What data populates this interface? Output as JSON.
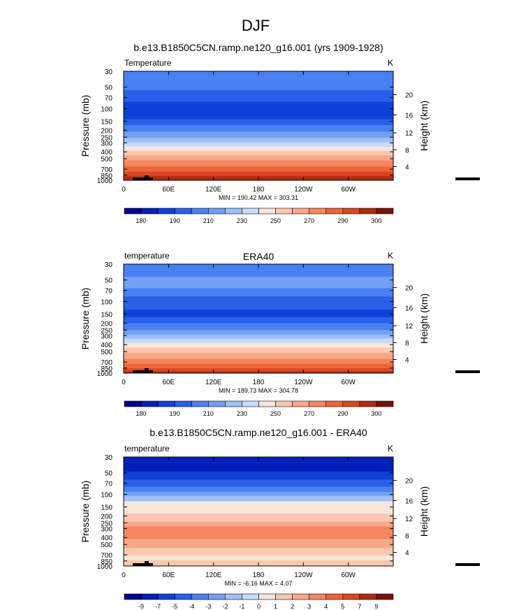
{
  "figure": {
    "title": "DJF"
  },
  "chart_data": [
    {
      "type": "heatmap",
      "title": "b.e13.B1850C5CN.ramp.ne120_g16.001 (yrs 1909-1928)",
      "left_label": "Temperature",
      "right_label": "K",
      "ylabel": "Pressure (mb)",
      "y2label": "Height (km)",
      "x_ticks": [
        "0",
        "60E",
        "120E",
        "180",
        "120W",
        "60W"
      ],
      "y_ticks": [
        "30",
        "50",
        "70",
        "100",
        "150",
        "200",
        "250",
        "300",
        "400",
        "500",
        "700",
        "850",
        "1000"
      ],
      "y2_ticks": [
        "20",
        "16",
        "12",
        "8",
        "4"
      ],
      "minmax": "MIN = 190.42   MAX = 303.31",
      "colorbar_labels": [
        "180",
        "190",
        "210",
        "230",
        "250",
        "270",
        "290",
        "300"
      ],
      "bands": [
        {
          "upper_mb": 30,
          "color_index": 4
        },
        {
          "upper_mb": 55,
          "color_index": 3
        },
        {
          "upper_mb": 80,
          "color_index": 2
        },
        {
          "upper_mb": 140,
          "color_index": 3
        },
        {
          "upper_mb": 170,
          "color_index": 4
        },
        {
          "upper_mb": 210,
          "color_index": 5
        },
        {
          "upper_mb": 255,
          "color_index": 6
        },
        {
          "upper_mb": 295,
          "color_index": 7
        },
        {
          "upper_mb": 340,
          "color_index": 8
        },
        {
          "upper_mb": 390,
          "color_index": 9
        },
        {
          "upper_mb": 450,
          "color_index": 10
        },
        {
          "upper_mb": 530,
          "color_index": 11
        },
        {
          "upper_mb": 640,
          "color_index": 12
        },
        {
          "upper_mb": 760,
          "color_index": 13
        },
        {
          "upper_mb": 880,
          "color_index": 14
        }
      ]
    },
    {
      "type": "heatmap",
      "title": "ERA40",
      "left_label": "temperature",
      "right_label": "K",
      "ylabel": "Pressure (mb)",
      "y2label": "Height (km)",
      "x_ticks": [
        "0",
        "60E",
        "120E",
        "180",
        "120W",
        "60W"
      ],
      "y_ticks": [
        "30",
        "50",
        "70",
        "100",
        "150",
        "200",
        "250",
        "300",
        "400",
        "500",
        "700",
        "850",
        "1000"
      ],
      "y2_ticks": [
        "20",
        "16",
        "12",
        "8",
        "4"
      ],
      "minmax": "MIN = 189.73   MAX = 304.78",
      "colorbar_labels": [
        "180",
        "190",
        "210",
        "230",
        "250",
        "270",
        "290",
        "300"
      ],
      "bands": [
        {
          "upper_mb": 30,
          "color_index": 4
        },
        {
          "upper_mb": 45,
          "color_index": 5
        },
        {
          "upper_mb": 65,
          "color_index": 4
        },
        {
          "upper_mb": 85,
          "color_index": 3
        },
        {
          "upper_mb": 130,
          "color_index": 2
        },
        {
          "upper_mb": 165,
          "color_index": 3
        },
        {
          "upper_mb": 200,
          "color_index": 4
        },
        {
          "upper_mb": 250,
          "color_index": 5
        },
        {
          "upper_mb": 290,
          "color_index": 6
        },
        {
          "upper_mb": 330,
          "color_index": 7
        },
        {
          "upper_mb": 380,
          "color_index": 8
        },
        {
          "upper_mb": 440,
          "color_index": 9
        },
        {
          "upper_mb": 520,
          "color_index": 10
        },
        {
          "upper_mb": 630,
          "color_index": 11
        },
        {
          "upper_mb": 740,
          "color_index": 12
        },
        {
          "upper_mb": 860,
          "color_index": 13
        },
        {
          "upper_mb": 950,
          "color_index": 14
        }
      ]
    },
    {
      "type": "heatmap",
      "title": "b.e13.B1850C5CN.ramp.ne120_g16.001 - ERA40",
      "left_label": "temperature",
      "right_label": "K",
      "ylabel": "Pressure (mb)",
      "y2label": "Height (km)",
      "x_ticks": [
        "0",
        "60E",
        "120E",
        "180",
        "120W",
        "60W"
      ],
      "y_ticks": [
        "30",
        "50",
        "70",
        "100",
        "150",
        "200",
        "250",
        "300",
        "400",
        "500",
        "700",
        "850",
        "1000"
      ],
      "y2_ticks": [
        "20",
        "16",
        "12",
        "8",
        "4"
      ],
      "minmax": "MIN = -6.16   MAX = 4.07",
      "colorbar_labels": [
        "-9",
        "-7",
        "-5",
        "-4",
        "-3",
        "-2",
        "-1",
        "0",
        "1",
        "2",
        "3",
        "4",
        "5",
        "7",
        "9"
      ],
      "bands": [
        {
          "upper_mb": 30,
          "color_index": 1
        },
        {
          "upper_mb": 48,
          "color_index": 2
        },
        {
          "upper_mb": 62,
          "color_index": 3
        },
        {
          "upper_mb": 78,
          "color_index": 4
        },
        {
          "upper_mb": 92,
          "color_index": 5
        },
        {
          "upper_mb": 105,
          "color_index": 6
        },
        {
          "upper_mb": 125,
          "color_index": 8
        },
        {
          "upper_mb": 185,
          "color_index": 9
        },
        {
          "upper_mb": 240,
          "color_index": 10
        },
        {
          "upper_mb": 280,
          "color_index": 11
        },
        {
          "upper_mb": 420,
          "color_index": 10
        },
        {
          "upper_mb": 560,
          "color_index": 9
        },
        {
          "upper_mb": 720,
          "color_index": 8
        },
        {
          "upper_mb": 830,
          "color_index": 9
        }
      ]
    }
  ],
  "colors": {
    "palette": [
      "#000090",
      "#0020b8",
      "#1040d8",
      "#2a60e8",
      "#4a80f0",
      "#72a0f4",
      "#9ec0f8",
      "#c8dcfa",
      "#f8e6dc",
      "#fac8b0",
      "#f8a888",
      "#f48660",
      "#ee6438",
      "#d84820",
      "#b02c10",
      "#7e1008"
    ],
    "topography": "#000000"
  }
}
